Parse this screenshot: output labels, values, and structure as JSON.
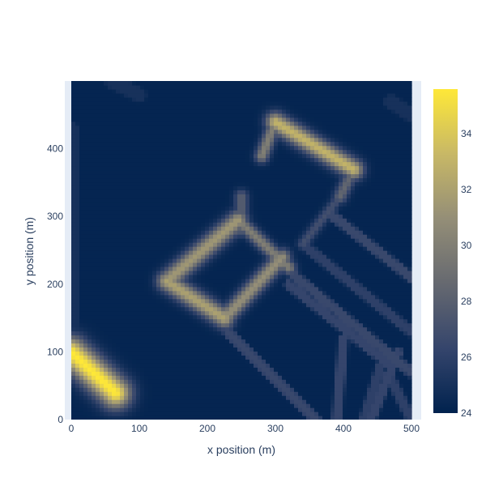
{
  "chart_data": {
    "type": "heatmap",
    "title": "",
    "xlabel": "x position (m)",
    "ylabel": "y position (m)",
    "xlim": [
      0,
      500
    ],
    "ylim": [
      0,
      500
    ],
    "x_ticks": [
      "0",
      "100",
      "200",
      "300",
      "400",
      "500"
    ],
    "y_ticks": [
      "0",
      "100",
      "200",
      "300",
      "400"
    ],
    "colorbar": {
      "range": [
        24,
        35.6
      ],
      "ticks": [
        "24",
        "26",
        "28",
        "30",
        "32",
        "34"
      ],
      "colorscale": [
        "#00224e",
        "#35456c",
        "#666970",
        "#948e77",
        "#c8b866",
        "#fee838"
      ]
    },
    "background_value": 24.2,
    "features": [
      {
        "kind": "hotspot",
        "from": [
          0,
          100
        ],
        "to": [
          65,
          40
        ],
        "peak": 35.6,
        "width": 22
      },
      {
        "kind": "hotspot",
        "from": [
          140,
          205
        ],
        "to": [
          245,
          295
        ],
        "peak": 31.5,
        "width": 14
      },
      {
        "kind": "hotspot",
        "from": [
          140,
          205
        ],
        "to": [
          225,
          150
        ],
        "peak": 32,
        "width": 14
      },
      {
        "kind": "hotspot",
        "from": [
          225,
          150
        ],
        "to": [
          310,
          240
        ],
        "peak": 31,
        "width": 12
      },
      {
        "kind": "hotspot",
        "from": [
          245,
          295
        ],
        "to": [
          320,
          225
        ],
        "peak": 30,
        "width": 10
      },
      {
        "kind": "hotspot",
        "from": [
          300,
          440
        ],
        "to": [
          415,
          370
        ],
        "peak": 33,
        "width": 14
      },
      {
        "kind": "hotspot",
        "from": [
          300,
          440
        ],
        "to": [
          280,
          390
        ],
        "peak": 30,
        "width": 10
      },
      {
        "kind": "hotspot",
        "from": [
          415,
          370
        ],
        "to": [
          395,
          330
        ],
        "peak": 28.5,
        "width": 10
      },
      {
        "kind": "hotspot",
        "from": [
          395,
          330
        ],
        "to": [
          340,
          260
        ],
        "peak": 27,
        "width": 8
      },
      {
        "kind": "hotspot",
        "from": [
          250,
          330
        ],
        "to": [
          250,
          280
        ],
        "peak": 28,
        "width": 10
      },
      {
        "kind": "street",
        "from": [
          230,
          130
        ],
        "to": [
          360,
          0
        ],
        "peak": 26.5,
        "width": 5
      },
      {
        "kind": "street",
        "from": [
          290,
          245
        ],
        "to": [
          500,
          70
        ],
        "peak": 26.5,
        "width": 5
      },
      {
        "kind": "street",
        "from": [
          320,
          200
        ],
        "to": [
          470,
          80
        ],
        "peak": 26.3,
        "width": 5
      },
      {
        "kind": "street",
        "from": [
          380,
          305
        ],
        "to": [
          500,
          210
        ],
        "peak": 26.5,
        "width": 5
      },
      {
        "kind": "street",
        "from": [
          340,
          260
        ],
        "to": [
          500,
          130
        ],
        "peak": 26,
        "width": 5
      },
      {
        "kind": "street",
        "from": [
          400,
          120
        ],
        "to": [
          390,
          0
        ],
        "peak": 26.3,
        "width": 5
      },
      {
        "kind": "street",
        "from": [
          480,
          100
        ],
        "to": [
          440,
          0
        ],
        "peak": 26.3,
        "width": 5
      },
      {
        "kind": "street",
        "from": [
          470,
          60
        ],
        "to": [
          500,
          0
        ],
        "peak": 26,
        "width": 5
      },
      {
        "kind": "street",
        "from": [
          455,
          80
        ],
        "to": [
          430,
          0
        ],
        "peak": 26,
        "width": 5
      },
      {
        "kind": "street",
        "from": [
          0,
          80
        ],
        "to": [
          0,
          430
        ],
        "peak": 25,
        "width": 8
      },
      {
        "kind": "street",
        "from": [
          60,
          500
        ],
        "to": [
          100,
          480
        ],
        "peak": 25,
        "width": 8
      },
      {
        "kind": "street",
        "from": [
          470,
          470
        ],
        "to": [
          500,
          450
        ],
        "peak": 25,
        "width": 8
      }
    ]
  }
}
